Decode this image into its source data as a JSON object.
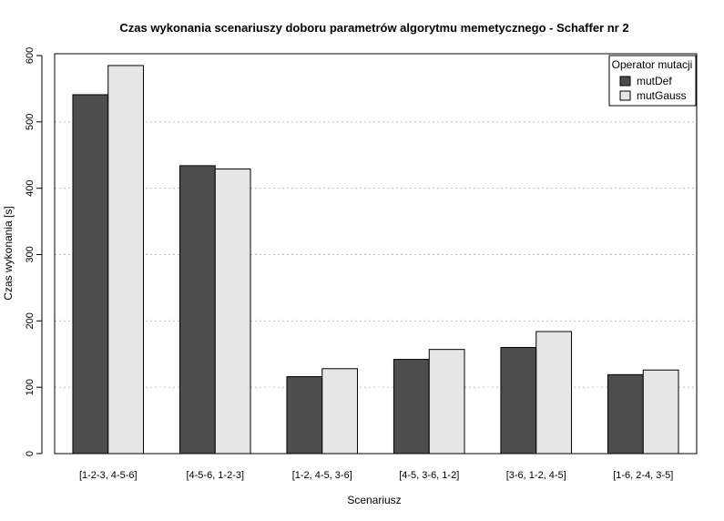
{
  "chart_data": {
    "type": "bar",
    "title": "Czas wykonania scenariuszy doboru parametrów algorytmu memetycznego - Schaffer nr 2",
    "xlabel": "Scenariusz",
    "ylabel": "Czas wykonania [s]",
    "ylim": [
      0,
      600
    ],
    "yticks": [
      0,
      100,
      200,
      300,
      400,
      500,
      600
    ],
    "grid": "horizontal dotted",
    "legend_position": "top-right",
    "legend_title": "Operator mutacji",
    "categories": [
      "[1-2-3, 4-5-6]",
      "[4-5-6, 1-2-3]",
      "[1-2, 4-5, 3-6]",
      "[4-5, 3-6, 1-2]",
      "[3-6, 1-2, 4-5]",
      "[1-6, 2-4, 3-5]"
    ],
    "series": [
      {
        "name": "mutDef",
        "color": "#4d4d4d",
        "values": [
          541,
          434,
          116,
          142,
          160,
          119
        ]
      },
      {
        "name": "mutGauss",
        "color": "#e6e6e6",
        "values": [
          585,
          429,
          128,
          157,
          184,
          126
        ]
      }
    ]
  }
}
